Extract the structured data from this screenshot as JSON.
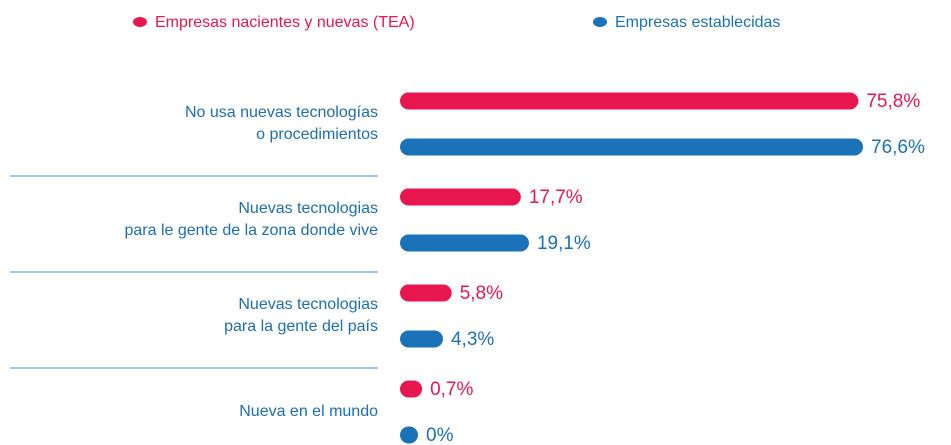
{
  "chart_data": {
    "type": "bar",
    "orientation": "horizontal",
    "categories": [
      "No usa nuevas tecnologías\no procedimientos",
      "Nuevas tecnologias\npara le gente de la zona donde vive",
      "Nuevas tecnologias\npara la gente del país",
      "Nueva en el mundo"
    ],
    "series": [
      {
        "name": "Empresas nacientes y nuevas (TEA)",
        "color": "#e8174f",
        "values": [
          75.8,
          17.7,
          5.8,
          0.7
        ],
        "value_labels": [
          "75,8%",
          "17,7%",
          "5,8%",
          "0,7%"
        ]
      },
      {
        "name": "Empresas establecidas",
        "color": "#1a72b8",
        "values": [
          76.6,
          19.1,
          4.3,
          0
        ],
        "value_labels": [
          "76,6%",
          "19,1%",
          "4,3%",
          "0%"
        ]
      }
    ],
    "legend": "top"
  }
}
